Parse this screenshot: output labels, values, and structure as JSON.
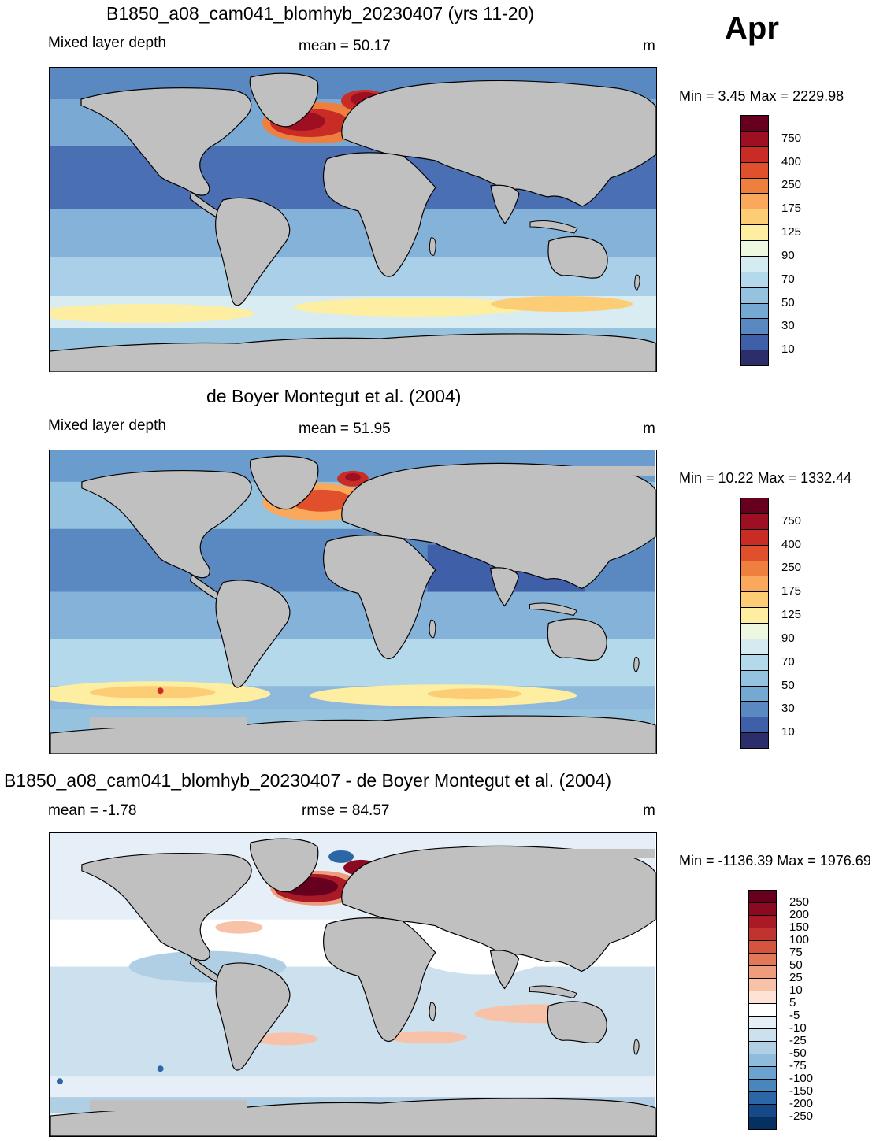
{
  "header": {
    "month": "Apr"
  },
  "panels": [
    {
      "title": "B1850_a08_cam041_blomhyb_20230407 (yrs 11-20)",
      "left_label": "Mixed layer depth",
      "center_label": "mean =  50.17",
      "units": "m",
      "minmax": "Min =   3.45 Max = 2229.98",
      "colorbar": {
        "labels": [
          "750",
          "400",
          "250",
          "175",
          "125",
          "90",
          "70",
          "50",
          "30",
          "10"
        ],
        "colors": [
          "#67001f",
          "#9e0f23",
          "#c82c24",
          "#e0502c",
          "#ef7f3f",
          "#f9a85c",
          "#fdcd76",
          "#fdeea2",
          "#eef7e0",
          "#d4ebf2",
          "#b4d9ea",
          "#95c3df",
          "#76a9d1",
          "#5a89c2",
          "#3f60a8",
          "#2c2e6c"
        ]
      }
    },
    {
      "title": "de Boyer Montegut et al. (2004)",
      "left_label": "Mixed layer depth",
      "center_label": "mean =  51.95",
      "units": "m",
      "minmax": "Min =  10.22 Max = 1332.44",
      "colorbar": {
        "labels": [
          "750",
          "400",
          "250",
          "175",
          "125",
          "90",
          "70",
          "50",
          "30",
          "10"
        ],
        "colors": [
          "#67001f",
          "#9e0f23",
          "#c82c24",
          "#e0502c",
          "#ef7f3f",
          "#f9a85c",
          "#fdcd76",
          "#fdeea2",
          "#eef7e0",
          "#d4ebf2",
          "#b4d9ea",
          "#95c3df",
          "#76a9d1",
          "#5a89c2",
          "#3f60a8",
          "#2c2e6c"
        ]
      }
    },
    {
      "title": "B1850_a08_cam041_blomhyb_20230407 - de Boyer Montegut et al. (2004)",
      "left_label": "mean =  -1.78",
      "center_label": "rmse =  84.57",
      "units": "m",
      "minmax": "Min = -1136.39 Max = 1976.69",
      "colorbar": {
        "labels": [
          "250",
          "200",
          "150",
          "100",
          "75",
          "50",
          "25",
          "10",
          "5",
          "-5",
          "-10",
          "-25",
          "-50",
          "-75",
          "-100",
          "-150",
          "-200",
          "-250"
        ],
        "colors": [
          "#67001f",
          "#8b0a22",
          "#a91a26",
          "#c1332e",
          "#d4543d",
          "#e37858",
          "#ef9c7e",
          "#f7c2a8",
          "#fde3d6",
          "#ffffff",
          "#e6eff7",
          "#cde0ee",
          "#b0cfe5",
          "#8fbcdc",
          "#6aa3cf",
          "#4886bd",
          "#2d66a6",
          "#154987",
          "#053061"
        ]
      }
    }
  ]
}
